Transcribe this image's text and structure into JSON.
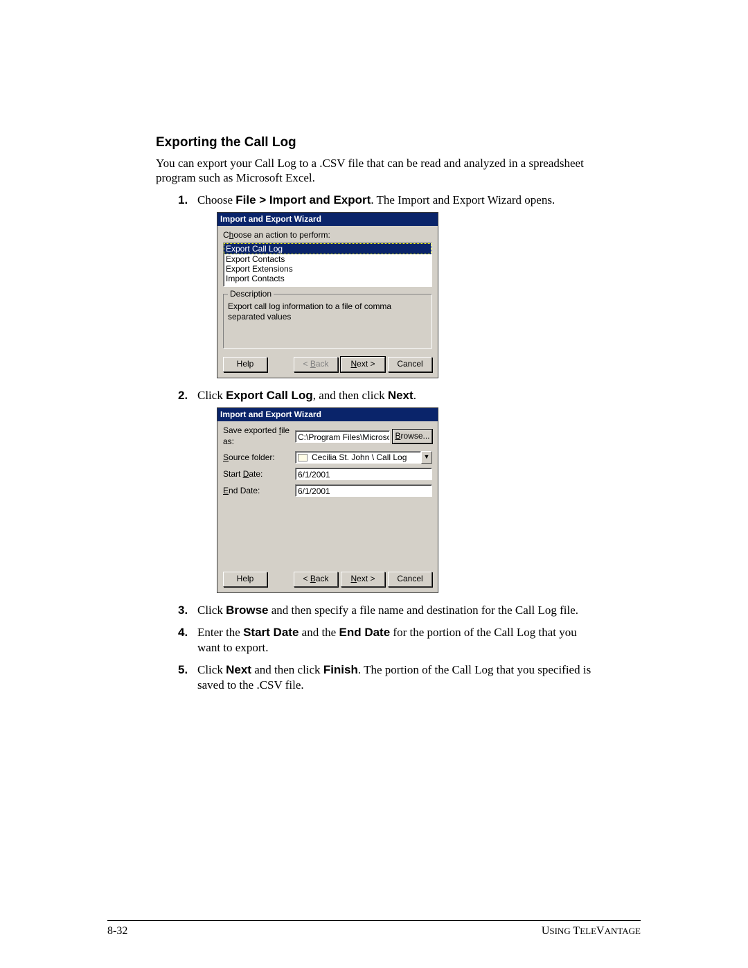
{
  "section_title": "Exporting the Call Log",
  "intro_text": "You can export your Call Log to a .CSV file that can be read and analyzed in a spreadsheet program such as Microsoft Excel.",
  "steps": {
    "s1": {
      "num": "1.",
      "pre": "Choose ",
      "bold": "File > Import and Export",
      "post": ". The Import and Export Wizard opens."
    },
    "s2": {
      "num": "2.",
      "pre": "Click ",
      "bold1": "Export Call Log",
      "mid": ", and then click ",
      "bold2": "Next",
      "post": "."
    },
    "s3": {
      "num": "3.",
      "pre": "Click ",
      "bold": "Browse",
      "post": " and then specify a file name and destination for the Call Log file."
    },
    "s4": {
      "num": "4.",
      "pre": "Enter the ",
      "bold1": "Start Date",
      "mid": " and the ",
      "bold2": "End Date",
      "post": " for the portion of the Call Log that you want to export."
    },
    "s5": {
      "num": "5.",
      "pre": "Click ",
      "bold1": "Next",
      "mid": " and then click ",
      "bold2": "Finish",
      "post": ". The portion of the Call Log that you specified is saved to the .CSV file."
    }
  },
  "wizard1": {
    "title": "Import and Export Wizard",
    "prompt_pre": "C",
    "prompt_u": "h",
    "prompt_post": "oose an action to perform:",
    "items": {
      "i0": "Export Call Log",
      "i1": "Export Contacts",
      "i2": "Export Extensions",
      "i3": "Import Contacts"
    },
    "desc_legend": "Description",
    "desc_text": "Export call log information to a file of comma separated values",
    "btn_help": "Help",
    "btn_back_pre": "< ",
    "btn_back_u": "B",
    "btn_back_post": "ack",
    "btn_next_u": "N",
    "btn_next_post": "ext >",
    "btn_cancel": "Cancel"
  },
  "wizard2": {
    "title": "Import and Export Wizard",
    "lbl_save_pre": "Save exported ",
    "lbl_save_u": "f",
    "lbl_save_post": "ile as:",
    "val_save": "C:\\Program Files\\Microsoft Office\\Office\\Call",
    "btn_browse_u": "B",
    "btn_browse_post": "rowse...",
    "lbl_source_u": "S",
    "lbl_source_post": "ource folder:",
    "val_source": "Cecilia St. John \\ Call Log",
    "lbl_start_pre": "Start ",
    "lbl_start_u": "D",
    "lbl_start_post": "ate:",
    "val_start": "6/1/2001",
    "lbl_end_u": "E",
    "lbl_end_post": "nd Date:",
    "val_end": "6/1/2001",
    "btn_help": "Help",
    "btn_back_pre": "< ",
    "btn_back_u": "B",
    "btn_back_post": "ack",
    "btn_next_u": "N",
    "btn_next_post": "ext >",
    "btn_cancel": "Cancel"
  },
  "footer": {
    "page_num": "8-32",
    "right_pre": "U",
    "right_small1": "SING",
    "right_sp": " T",
    "right_small2": "ELE",
    "right_v": "V",
    "right_small3": "ANTAGE"
  },
  "colors": {
    "titlebar_bg": "#0a246a",
    "titlebar_fg": "#ffffff",
    "dialog_bg": "#d4d0c8",
    "selection_bg": "#0a246a",
    "page_bg": "#ffffff",
    "text": "#000000",
    "disabled_text": "#808080"
  }
}
